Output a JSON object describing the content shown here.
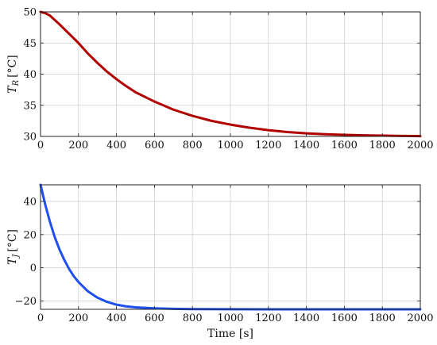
{
  "chart_data": [
    {
      "type": "line",
      "ylabel_main": "T",
      "ylabel_sub": "R",
      "ylabel_unit": "[°C]",
      "xlim": [
        0,
        2000
      ],
      "ylim": [
        30,
        50
      ],
      "xticks": [
        0,
        200,
        400,
        600,
        800,
        1000,
        1200,
        1400,
        1600,
        1800,
        2000
      ],
      "yticks": [
        30,
        35,
        40,
        45,
        50
      ],
      "xtick_labels": [
        "0",
        "200",
        "400",
        "600",
        "800",
        "1000",
        "1200",
        "1400",
        "1600",
        "1800",
        "2000"
      ],
      "ytick_labels": [
        "30",
        "35",
        "40",
        "45",
        "50"
      ],
      "grid": true,
      "series": [
        {
          "color": "#b00000",
          "x": [
            0,
            25,
            50,
            100,
            150,
            200,
            250,
            300,
            350,
            400,
            450,
            500,
            600,
            700,
            800,
            900,
            1000,
            1100,
            1200,
            1300,
            1400,
            1500,
            1600,
            1700,
            1800,
            1900,
            2000
          ],
          "y": [
            50.0,
            49.8,
            49.4,
            48.0,
            46.5,
            45.0,
            43.3,
            41.8,
            40.4,
            39.2,
            38.1,
            37.1,
            35.6,
            34.3,
            33.3,
            32.5,
            31.9,
            31.4,
            31.0,
            30.7,
            30.5,
            30.35,
            30.25,
            30.18,
            30.12,
            30.08,
            30.05
          ]
        }
      ]
    },
    {
      "type": "line",
      "ylabel_main": "T",
      "ylabel_sub": "J",
      "ylabel_unit": "[°C]",
      "xlabel": "Time [s]",
      "xlim": [
        0,
        2000
      ],
      "ylim": [
        -25,
        50
      ],
      "xticks": [
        0,
        200,
        400,
        600,
        800,
        1000,
        1200,
        1400,
        1600,
        1800,
        2000
      ],
      "yticks": [
        -20,
        0,
        20,
        40
      ],
      "xtick_labels": [
        "0",
        "200",
        "400",
        "600",
        "800",
        "1000",
        "1200",
        "1400",
        "1600",
        "1800",
        "2000"
      ],
      "ytick_labels": [
        "−20",
        "0",
        "20",
        "40"
      ],
      "grid": true,
      "series": [
        {
          "color": "#1f4ff0",
          "x": [
            0,
            25,
            50,
            75,
            100,
            125,
            150,
            175,
            200,
            250,
            300,
            350,
            400,
            450,
            500,
            600,
            700,
            800,
            1000,
            1200,
            1400,
            1600,
            1800,
            2000
          ],
          "y": [
            50.0,
            38.0,
            27.5,
            18.5,
            11.0,
            4.8,
            -0.6,
            -5.0,
            -8.6,
            -14.2,
            -18.0,
            -20.5,
            -22.2,
            -23.2,
            -23.8,
            -24.4,
            -24.7,
            -24.85,
            -24.95,
            -25.0,
            -25.0,
            -25.0,
            -25.0,
            -25.0
          ]
        }
      ]
    }
  ]
}
